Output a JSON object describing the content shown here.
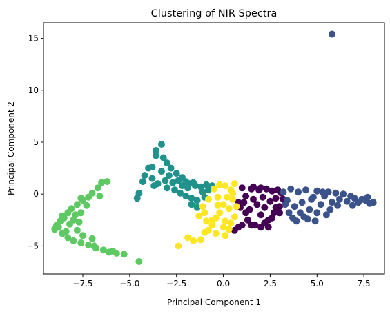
{
  "chart_data": {
    "type": "scatter",
    "title": "Clustering of NIR Spectra",
    "xlabel": "Principal Component 1",
    "ylabel": "Principal Component 2",
    "xlim": [
      -9.6,
      8.6
    ],
    "ylim": [
      -7.7,
      16.5
    ],
    "xticks": [
      -7.5,
      -5.0,
      -2.5,
      0.0,
      2.5,
      5.0,
      7.5
    ],
    "xtick_labels": [
      "−7.5",
      "−5.0",
      "−2.5",
      "0.0",
      "2.5",
      "5.0",
      "7.5"
    ],
    "yticks": [
      -5,
      0,
      5,
      10,
      15
    ],
    "ytick_labels": [
      "−5",
      "0",
      "5",
      "10",
      "15"
    ],
    "grid": false,
    "legend": "none",
    "series": [
      {
        "color": "#440154",
        "points": [
          [
            0.8,
            -0.8
          ],
          [
            1.0,
            0.6
          ],
          [
            1.2,
            -0.2
          ],
          [
            1.4,
            -1.5
          ],
          [
            1.5,
            0.5
          ],
          [
            1.6,
            -0.5
          ],
          [
            1.8,
            -1.0
          ],
          [
            1.9,
            0.4
          ],
          [
            2.0,
            -2.0
          ],
          [
            2.1,
            -0.3
          ],
          [
            2.2,
            -1.3
          ],
          [
            2.3,
            0.5
          ],
          [
            2.4,
            -2.5
          ],
          [
            2.5,
            -0.7
          ],
          [
            2.6,
            0.3
          ],
          [
            2.7,
            -1.8
          ],
          [
            2.8,
            -0.4
          ],
          [
            2.9,
            0.4
          ],
          [
            3.0,
            -1.2
          ],
          [
            3.1,
            0.1
          ],
          [
            1.3,
            -2.5
          ],
          [
            1.7,
            -3.0
          ],
          [
            2.0,
            -3.2
          ],
          [
            2.4,
            -3.2
          ],
          [
            1.5,
            -3.0
          ],
          [
            1.0,
            -3.0
          ],
          [
            0.8,
            -3.2
          ],
          [
            0.6,
            -3.5
          ],
          [
            1.2,
            -1.8
          ],
          [
            0.9,
            -1.3
          ],
          [
            2.6,
            -2.3
          ],
          [
            3.0,
            -1.8
          ],
          [
            2.2,
            -2.8
          ],
          [
            1.6,
            0.7
          ],
          [
            3.2,
            -0.5
          ],
          [
            2.0,
            0.6
          ],
          [
            1.1,
            -0.8
          ],
          [
            2.8,
            -1.3
          ]
        ]
      },
      {
        "color": "#3b528b",
        "points": [
          [
            5.8,
            15.4
          ],
          [
            3.2,
            0.2
          ],
          [
            3.4,
            -0.6
          ],
          [
            3.6,
            0.5
          ],
          [
            3.8,
            -1.2
          ],
          [
            4.0,
            0.2
          ],
          [
            4.2,
            -0.8
          ],
          [
            4.4,
            0.4
          ],
          [
            4.6,
            -1.5
          ],
          [
            4.8,
            -0.3
          ],
          [
            5.0,
            0.3
          ],
          [
            5.2,
            -1.0
          ],
          [
            5.4,
            -0.2
          ],
          [
            5.6,
            0.2
          ],
          [
            5.8,
            -0.8
          ],
          [
            6.0,
            0.1
          ],
          [
            6.2,
            -0.5
          ],
          [
            6.4,
            0.0
          ],
          [
            6.6,
            -0.7
          ],
          [
            6.8,
            -0.2
          ],
          [
            7.0,
            -0.4
          ],
          [
            7.2,
            -0.8
          ],
          [
            7.4,
            -0.5
          ],
          [
            7.6,
            -0.6
          ],
          [
            7.8,
            -0.9
          ],
          [
            8.0,
            -0.8
          ],
          [
            7.7,
            -0.3
          ],
          [
            3.5,
            -1.8
          ],
          [
            3.7,
            -2.3
          ],
          [
            3.9,
            -2.6
          ],
          [
            4.3,
            -2.2
          ],
          [
            4.1,
            -1.8
          ],
          [
            4.5,
            -2.4
          ],
          [
            5.0,
            -1.8
          ],
          [
            5.5,
            -2.0
          ],
          [
            4.7,
            -0.5
          ],
          [
            5.3,
            0.2
          ],
          [
            3.3,
            -1.0
          ],
          [
            6.1,
            -1.1
          ],
          [
            6.9,
            -1.1
          ],
          [
            4.9,
            -2.6
          ],
          [
            5.7,
            -1.5
          ]
        ]
      },
      {
        "color": "#21918c",
        "points": [
          [
            -3.3,
            4.8
          ],
          [
            -3.6,
            4.2
          ],
          [
            -3.6,
            3.7
          ],
          [
            -3.2,
            3.5
          ],
          [
            -3.0,
            3.0
          ],
          [
            -2.8,
            2.5
          ],
          [
            -2.5,
            2.0
          ],
          [
            -2.2,
            1.6
          ],
          [
            -2.0,
            1.2
          ],
          [
            -1.8,
            1.0
          ],
          [
            -1.5,
            0.8
          ],
          [
            -1.2,
            0.7
          ],
          [
            -0.9,
            0.9
          ],
          [
            -0.6,
            0.8
          ],
          [
            -3.8,
            2.6
          ],
          [
            -4.0,
            2.5
          ],
          [
            -4.2,
            1.8
          ],
          [
            -4.3,
            1.2
          ],
          [
            -4.5,
            0.1
          ],
          [
            -4.6,
            -0.4
          ],
          [
            -3.8,
            1.5
          ],
          [
            -3.5,
            1.0
          ],
          [
            -3.0,
            0.6
          ],
          [
            -2.6,
            0.4
          ],
          [
            -2.3,
            0.1
          ],
          [
            -2.0,
            -0.2
          ],
          [
            -1.7,
            -0.4
          ],
          [
            -1.4,
            -0.6
          ],
          [
            -1.7,
            -1.0
          ],
          [
            -1.4,
            -1.3
          ],
          [
            -1.0,
            -0.3
          ],
          [
            -2.4,
            1.3
          ],
          [
            -2.9,
            1.8
          ],
          [
            -3.3,
            2.2
          ],
          [
            -3.1,
            1.3
          ],
          [
            -2.7,
            1.1
          ],
          [
            -1.9,
            0.6
          ],
          [
            -1.1,
            0.2
          ],
          [
            -0.8,
            0.4
          ],
          [
            -3.7,
            0.8
          ],
          [
            -1.6,
            1.1
          ],
          [
            -2.2,
            0.8
          ]
        ]
      },
      {
        "color": "#5ec962",
        "points": [
          [
            -6.2,
            1.2
          ],
          [
            -6.5,
            1.1
          ],
          [
            -6.7,
            0.6
          ],
          [
            -7.0,
            0.1
          ],
          [
            -7.2,
            -0.3
          ],
          [
            -7.5,
            -0.6
          ],
          [
            -7.8,
            -1.0
          ],
          [
            -8.1,
            -1.4
          ],
          [
            -8.3,
            -1.8
          ],
          [
            -8.5,
            -2.3
          ],
          [
            -8.7,
            -2.6
          ],
          [
            -8.9,
            -3.0
          ],
          [
            -9.0,
            -3.4
          ],
          [
            -8.6,
            -3.8
          ],
          [
            -8.3,
            -4.2
          ],
          [
            -8.0,
            -4.5
          ],
          [
            -7.6,
            -4.7
          ],
          [
            -7.2,
            -4.9
          ],
          [
            -6.8,
            -5.2
          ],
          [
            -6.4,
            -5.4
          ],
          [
            -6.1,
            -5.6
          ],
          [
            -5.7,
            -5.7
          ],
          [
            -5.3,
            -5.8
          ],
          [
            -4.5,
            -6.5
          ],
          [
            -8.0,
            -2.5
          ],
          [
            -7.8,
            -3.5
          ],
          [
            -8.2,
            -2.9
          ],
          [
            -7.6,
            -1.8
          ],
          [
            -7.3,
            -1.1
          ],
          [
            -7.6,
            -0.4
          ],
          [
            -8.8,
            -3.2
          ],
          [
            -7.5,
            -4.0
          ],
          [
            -7.9,
            -2.0
          ],
          [
            -8.4,
            -3.6
          ],
          [
            -7.0,
            -4.3
          ],
          [
            -6.6,
            -0.2
          ],
          [
            -7.7,
            -2.7
          ],
          [
            -8.6,
            -2.1
          ],
          [
            -6.9,
            -5.0
          ],
          [
            -5.9,
            -5.5
          ]
        ]
      },
      {
        "color": "#fde725",
        "points": [
          [
            -1.9,
            -4.2
          ],
          [
            -2.4,
            -5.0
          ],
          [
            -1.6,
            -4.5
          ],
          [
            -1.2,
            -4.4
          ],
          [
            -1.0,
            -3.7
          ],
          [
            -0.8,
            -3.5
          ],
          [
            -0.6,
            -3.0
          ],
          [
            -0.4,
            -2.3
          ],
          [
            -0.2,
            -1.8
          ],
          [
            0.0,
            -1.0
          ],
          [
            0.2,
            -0.3
          ],
          [
            0.4,
            0.4
          ],
          [
            0.6,
            1.0
          ],
          [
            -0.8,
            -0.5
          ],
          [
            -1.1,
            -1.2
          ],
          [
            -1.3,
            -2.1
          ],
          [
            -0.5,
            0.5
          ],
          [
            -0.3,
            -0.3
          ],
          [
            0.1,
            0.8
          ],
          [
            0.5,
            -0.5
          ],
          [
            0.3,
            -1.4
          ],
          [
            0.6,
            -2.2
          ],
          [
            0.4,
            -2.8
          ],
          [
            0.1,
            -2.6
          ],
          [
            -0.3,
            -1.1
          ],
          [
            -0.9,
            -2.6
          ],
          [
            0.0,
            -3.2
          ],
          [
            0.3,
            -3.4
          ],
          [
            0.1,
            -4.0
          ],
          [
            -0.6,
            -2.5
          ],
          [
            -0.2,
            0.9
          ],
          [
            0.7,
            -1.2
          ],
          [
            -1.0,
            -1.8
          ],
          [
            0.5,
            0.1
          ],
          [
            -0.4,
            -3.8
          ]
        ]
      }
    ]
  }
}
